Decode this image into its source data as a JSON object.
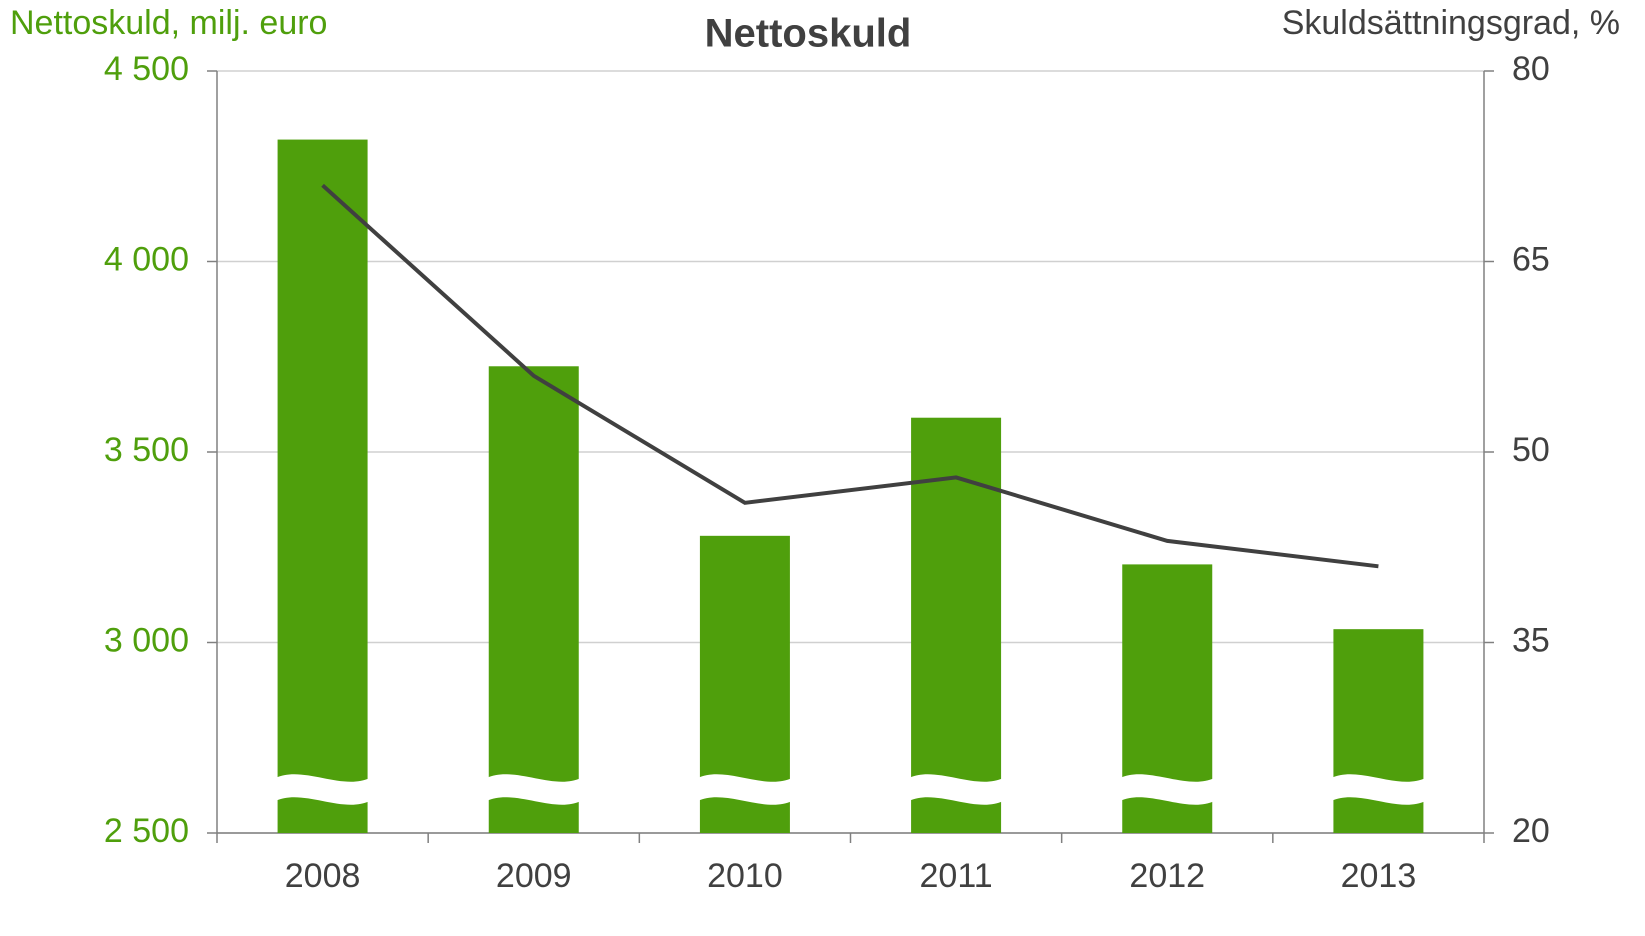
{
  "chart_data": {
    "type": "bar",
    "title": "Nettoskuld",
    "ylabel": "Nettoskuld, milj. euro",
    "y2label": "Skuldsättningsgrad, %",
    "categories": [
      "2008",
      "2009",
      "2010",
      "2011",
      "2012",
      "2013"
    ],
    "series": [
      {
        "type": "bar",
        "color": "#4f9f0c",
        "values": [
          4320,
          3725,
          3280,
          3590,
          3205,
          3035
        ]
      },
      {
        "type": "line",
        "axis": "y2",
        "color": "#404040",
        "values": [
          71,
          56,
          46,
          48,
          43,
          41
        ]
      }
    ],
    "ylim": [
      2500,
      4500
    ],
    "yticks": [
      {
        "value": 2500,
        "label": "2 500"
      },
      {
        "value": 3000,
        "label": "3 000"
      },
      {
        "value": 3500,
        "label": "3 500"
      },
      {
        "value": 4000,
        "label": "4 000"
      },
      {
        "value": 4500,
        "label": "4 500"
      }
    ],
    "y2lim": [
      20,
      80
    ],
    "y2ticks": [
      20,
      35,
      50,
      65,
      80
    ],
    "grid": true,
    "axis_break": true
  }
}
